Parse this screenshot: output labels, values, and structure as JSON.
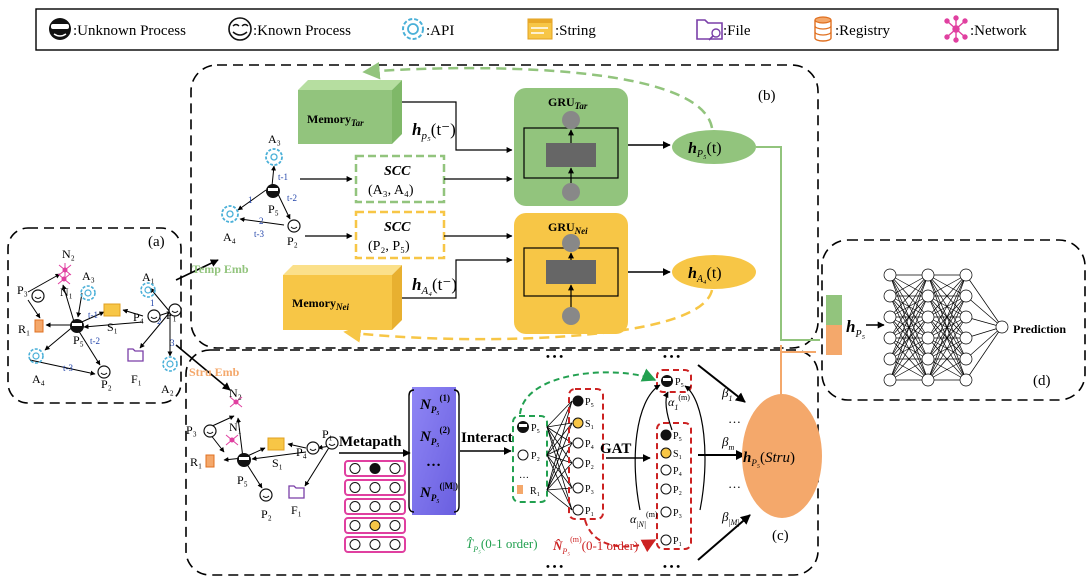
{
  "legend": {
    "unknown": ":Unknown Process",
    "known": ":Known Process",
    "api": ":API",
    "string": ":String",
    "file": ":File",
    "registry": ":Registry",
    "network": ":Network"
  },
  "panels": {
    "a": "(a)",
    "b": "(b)",
    "c": "(c)",
    "d": "(d)"
  },
  "labels": {
    "temp_emb": "Temp Emb",
    "stru_emb": "Stru Emb",
    "metapath": "Metapath",
    "interact": "Interact",
    "gat": "GAT",
    "prediction": "Prediction",
    "scc": "SCC",
    "scc_tar_args": "(A₃, A₄)",
    "scc_nei_args": "(P₂, P₅)",
    "memory": "Memory",
    "sub_tar": "Tar",
    "sub_nei": "Nei",
    "gru": "GRU",
    "t_p5_order": "(0-1 order)",
    "n_p5_order": "(0-1 order)",
    "dots": "…",
    "ellipsis": "• • •"
  },
  "math": {
    "h_p5_tminus": "h",
    "h_p5_t": "h",
    "h_a4_tminus": "h",
    "h_a4_t": "h",
    "h_p5_stru": "h",
    "h_p5": "h",
    "n_p5": "N",
    "t_hat": "T̂",
    "n_hat": "N̂",
    "alpha": "α",
    "beta": "β"
  },
  "graph_a": {
    "nodes": [
      "N₂",
      "N₁",
      "A₃",
      "P₃",
      "R₁",
      "S₁",
      "A₁",
      "P₄",
      "P₁",
      "P₅",
      "F₁",
      "A₄",
      "P₂",
      "A₂"
    ],
    "edge_labels": [
      "t-1",
      "t-2",
      "t-3",
      "1",
      "2",
      "3"
    ]
  },
  "graph_b": {
    "nodes": [
      "A₃",
      "A₄",
      "P₅",
      "P₂"
    ],
    "edge_labels": [
      "t-1",
      "t-2",
      "t-3",
      "1",
      "2"
    ]
  },
  "graph_c": {
    "nodes": [
      "N₂",
      "N₁",
      "P₃",
      "R₁",
      "S₁",
      "P₄",
      "P₁",
      "P₅",
      "F₁",
      "P₂"
    ]
  },
  "interact_nodes": [
    "P₅",
    "P₂",
    "R₁"
  ],
  "gat_left_nodes": [
    "P₅",
    "S₁",
    "P₄",
    "P₂",
    "P₃",
    "P₁"
  ],
  "gat_right_nodes": [
    "P₅",
    "S₁",
    "P₄",
    "P₂",
    "P₃",
    "P₁"
  ],
  "colors": {
    "green": "#92c47d",
    "orange": "#f4a86b",
    "yellow": "#f7c646",
    "purple": "#7b68ee",
    "pink": "#e040a0",
    "red": "#cc2222",
    "dgreen": "#22a050",
    "blue": "#2244aa"
  }
}
